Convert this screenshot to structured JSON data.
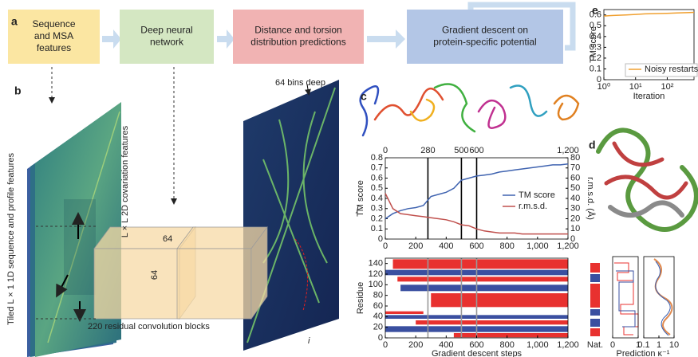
{
  "panel_letters": [
    "a",
    "b",
    "c",
    "d",
    "e"
  ],
  "flow_boxes": [
    [
      "Sequence",
      "and MSA",
      "features"
    ],
    [
      "Deep neural",
      "network"
    ],
    [
      "Distance and torsion",
      "distribution predictions"
    ],
    [
      "Gradient descent on",
      "protein-specific potential"
    ]
  ],
  "network": {
    "bins": "64 bins deep",
    "covariation": "L × L 2D covariation features",
    "sequence": "Tiled L × 1 1D sequence and profile features",
    "blocks": "220 residual convolution blocks",
    "width": "64",
    "height": "64",
    "i": "i",
    "j": "j"
  },
  "chart_data": [
    {
      "type": "line",
      "x": [
        0,
        50,
        100,
        150,
        200,
        250,
        300,
        350,
        400,
        450,
        500,
        550,
        600,
        650,
        700,
        750,
        800,
        850,
        900,
        950,
        1000,
        1050,
        1100,
        1150,
        1200
      ],
      "xlim": [
        0,
        1200
      ],
      "xticks": [
        0,
        200,
        400,
        600,
        800,
        {
          "value": 1000,
          "label": "1,000"
        },
        {
          "value": 1200,
          "label": "1,200"
        }
      ],
      "ylim": [
        0,
        0.8
      ],
      "yticks": [
        0,
        0.1,
        0.2,
        0.3,
        0.4,
        0.5,
        0.6,
        0.7,
        0.8
      ],
      "y2lim": [
        0,
        80
      ],
      "y2ticks": [
        0,
        10,
        20,
        30,
        40,
        50,
        60,
        70,
        80
      ],
      "ylabel": "TM score",
      "y2label": "r.m.s.d. (Å)",
      "snapshots": [
        0,
        280,
        500,
        600,
        {
          "value": 1200,
          "label": "1,200"
        }
      ],
      "legend": "center right",
      "series": [
        {
          "name": "TM score",
          "color": "#3f63b0",
          "values": [
            0.2,
            0.25,
            0.28,
            0.3,
            0.31,
            0.33,
            0.42,
            0.44,
            0.46,
            0.5,
            0.58,
            0.6,
            0.62,
            0.63,
            0.64,
            0.66,
            0.67,
            0.68,
            0.69,
            0.7,
            0.71,
            0.72,
            0.73,
            0.73,
            0.74
          ]
        },
        {
          "name": "r.m.s.d.",
          "color": "#c0504d",
          "axis": "y2",
          "values": [
            45,
            30,
            25,
            24,
            23,
            22,
            21,
            20,
            19,
            17,
            14,
            13,
            10,
            8,
            7,
            6,
            6,
            6,
            5,
            5,
            5,
            5,
            5,
            5,
            5
          ]
        }
      ]
    },
    {
      "type": "segments",
      "xlim": [
        0,
        1200
      ],
      "xticks": [
        0,
        200,
        400,
        600,
        800,
        {
          "value": 1000,
          "label": "1,000"
        },
        {
          "value": 1200,
          "label": "1,200"
        }
      ],
      "ylim": [
        0,
        150
      ],
      "yticks": [
        0,
        20,
        40,
        60,
        80,
        100,
        120,
        140
      ],
      "ylabel": "Residue",
      "xlabel": "Gradient descent steps",
      "markers": [
        280,
        500,
        600
      ],
      "segments": [
        {
          "x": [
            50,
            1200
          ],
          "y": [
            130,
            148
          ],
          "color": "#e8312f"
        },
        {
          "x": [
            0,
            1200
          ],
          "y": [
            118,
            128
          ],
          "color": "#3a4fa0"
        },
        {
          "x": [
            80,
            1200
          ],
          "y": [
            106,
            115
          ],
          "color": "#e8312f"
        },
        {
          "x": [
            100,
            1200
          ],
          "y": [
            88,
            100
          ],
          "color": "#3a4fa0"
        },
        {
          "x": [
            300,
            1200
          ],
          "y": [
            58,
            84
          ],
          "color": "#e8312f"
        },
        {
          "x": [
            0,
            250
          ],
          "y": [
            45,
            50
          ],
          "color": "#e8312f"
        },
        {
          "x": [
            0,
            1200
          ],
          "y": [
            36,
            43
          ],
          "color": "#3a4fa0"
        },
        {
          "x": [
            200,
            1200
          ],
          "y": [
            25,
            33
          ],
          "color": "#e8312f"
        },
        {
          "x": [
            0,
            1200
          ],
          "y": [
            11,
            22
          ],
          "color": "#3a4fa0"
        },
        {
          "x": [
            450,
            1200
          ],
          "y": [
            1,
            9
          ],
          "color": "#e8312f"
        }
      ]
    },
    {
      "type": "profile",
      "native_label": "Nat.",
      "xlabel": "Prediction κ⁻¹",
      "axes": [
        {
          "xlim": [
            0,
            1
          ],
          "xticks": [
            0,
            1
          ]
        },
        {
          "xlim": [
            0.1,
            10
          ],
          "xticks": [
            0.1,
            1,
            10
          ],
          "log": true
        }
      ]
    },
    {
      "type": "line",
      "log_x": true,
      "x": [
        1,
        2,
        5,
        10,
        20,
        50,
        100,
        200,
        500,
        700
      ],
      "xlim": [
        1,
        700
      ],
      "xticks": [
        {
          "value": 1,
          "label": "10⁰"
        },
        {
          "value": 10,
          "label": "10¹"
        },
        {
          "value": 100,
          "label": "10²"
        }
      ],
      "ylim": [
        0,
        0.65
      ],
      "yticks": [
        0,
        0.1,
        0.2,
        0.3,
        0.4,
        0.5,
        0.6
      ],
      "ylabel": "TM score",
      "xlabel": "Iteration",
      "legend": "lower right",
      "series": [
        {
          "name": "Noisy restarts",
          "color": "#f0a030",
          "values": [
            0.59,
            0.595,
            0.6,
            0.605,
            0.61,
            0.613,
            0.615,
            0.618,
            0.622,
            0.624
          ]
        }
      ]
    }
  ]
}
